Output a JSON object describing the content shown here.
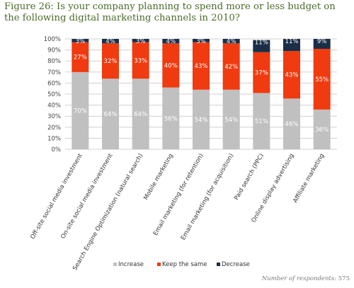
{
  "title": "Figure 26: Is your company planning to spend more or less budget on the following digital marketing channels in 2010?",
  "footnote": {
    "label": "Number of respondents:",
    "value": "575"
  },
  "colors": {
    "increase": "#c0c0c0",
    "keep": "#f03a0f",
    "decrease": "#1a2e47",
    "grid": "#d0d0d0",
    "axis_text": "#444444",
    "title": "#4a6b2a"
  },
  "chart_data": {
    "type": "bar",
    "stacked": true,
    "percent": true,
    "categories": [
      "Off-site social media investment",
      "On-site social media investment",
      "Search Engine Optimization (natural search)",
      "Mobile marketing",
      "Email marketing (for retention)",
      "Email marketing (for acquisition)",
      "Paid search (PPC)",
      "Online display advertising",
      "Affiliate marketing"
    ],
    "series": [
      {
        "name": "Increase",
        "values": [
          70,
          64,
          64,
          56,
          54,
          54,
          51,
          46,
          36
        ]
      },
      {
        "name": "Keep the same",
        "values": [
          27,
          32,
          33,
          40,
          43,
          42,
          37,
          43,
          55
        ]
      },
      {
        "name": "Decrease",
        "values": [
          3,
          4,
          3,
          4,
          3,
          4,
          11,
          11,
          9
        ]
      }
    ],
    "yticks": [
      "0%",
      "10%",
      "20%",
      "30%",
      "40%",
      "50%",
      "60%",
      "70%",
      "80%",
      "90%",
      "100%"
    ],
    "ylim": [
      0,
      100
    ],
    "grid": true,
    "legend_position": "bottom"
  }
}
